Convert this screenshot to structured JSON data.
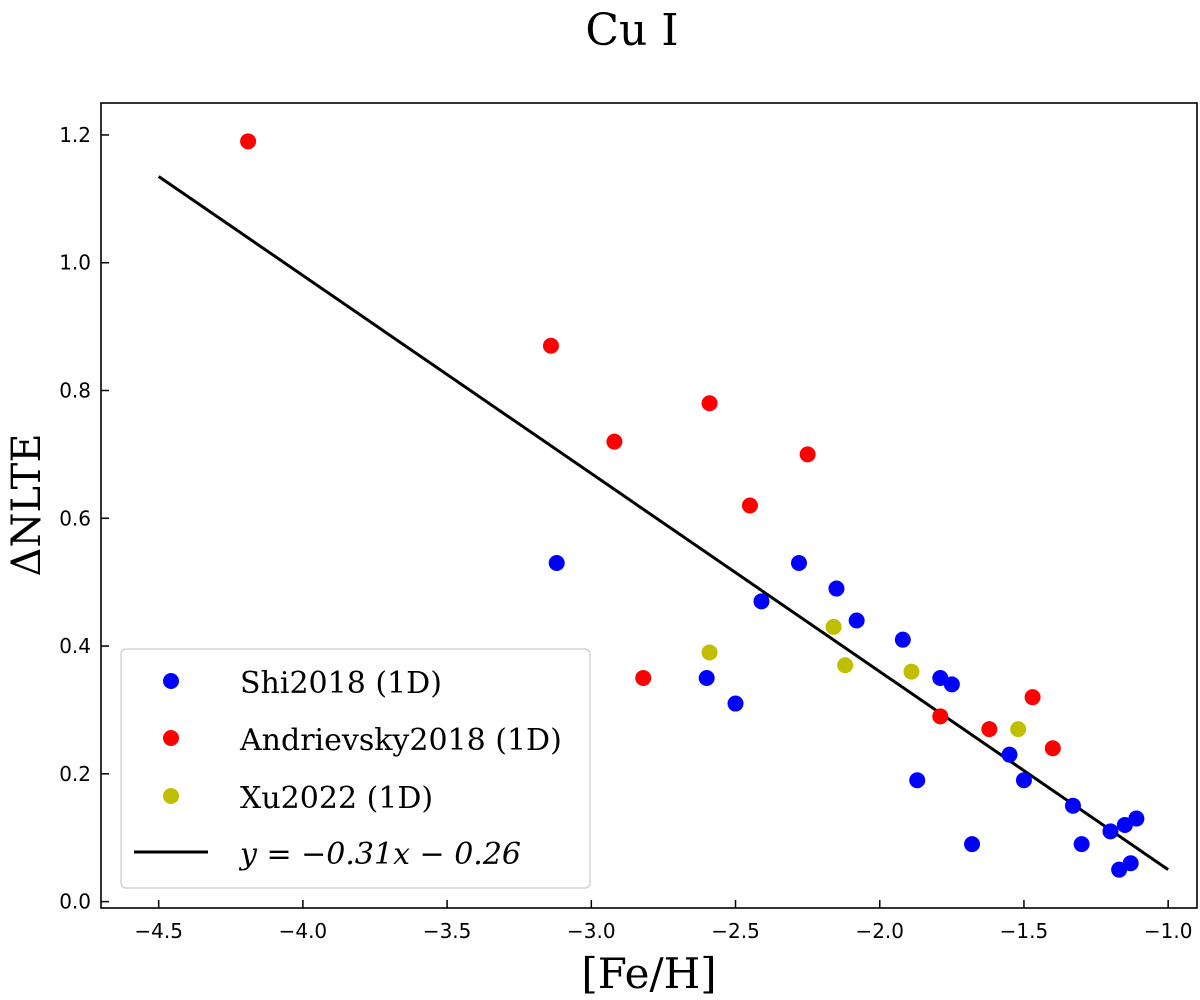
{
  "chart_data": {
    "type": "scatter",
    "title": "Cu I",
    "xlabel": "[Fe/H]",
    "ylabel": "ΔNLTE",
    "xlim": [
      -4.7,
      -0.9
    ],
    "ylim": [
      -0.01,
      1.25
    ],
    "xticks": [
      -4.5,
      -4.0,
      -3.5,
      -3.0,
      -2.5,
      -2.0,
      -1.5,
      -1.0
    ],
    "xtick_labels": [
      "−4.5",
      "−4.0",
      "−3.5",
      "−3.0",
      "−2.5",
      "−2.0",
      "−1.5",
      "−1.0"
    ],
    "yticks": [
      0.0,
      0.2,
      0.4,
      0.6,
      0.8,
      1.0,
      1.2
    ],
    "ytick_labels": [
      "0.0",
      "0.2",
      "0.4",
      "0.6",
      "0.8",
      "1.0",
      "1.2"
    ],
    "grid": false,
    "legend_position": "lower-left",
    "series": [
      {
        "name": "Shi2018 (1D)",
        "color": "#0000ff",
        "points": [
          [
            -3.12,
            0.53
          ],
          [
            -2.6,
            0.35
          ],
          [
            -2.5,
            0.31
          ],
          [
            -2.41,
            0.47
          ],
          [
            -2.28,
            0.53
          ],
          [
            -2.15,
            0.49
          ],
          [
            -2.08,
            0.44
          ],
          [
            -1.92,
            0.41
          ],
          [
            -1.87,
            0.19
          ],
          [
            -1.79,
            0.35
          ],
          [
            -1.75,
            0.34
          ],
          [
            -1.68,
            0.09
          ],
          [
            -1.55,
            0.23
          ],
          [
            -1.5,
            0.19
          ],
          [
            -1.33,
            0.15
          ],
          [
            -1.3,
            0.09
          ],
          [
            -1.2,
            0.11
          ],
          [
            -1.17,
            0.05
          ],
          [
            -1.15,
            0.12
          ],
          [
            -1.13,
            0.06
          ],
          [
            -1.11,
            0.13
          ]
        ]
      },
      {
        "name": "Andrievsky2018 (1D)",
        "color": "#ff0000",
        "points": [
          [
            -4.19,
            1.19
          ],
          [
            -3.14,
            0.87
          ],
          [
            -2.92,
            0.72
          ],
          [
            -2.82,
            0.35
          ],
          [
            -2.59,
            0.78
          ],
          [
            -2.45,
            0.62
          ],
          [
            -2.25,
            0.7
          ],
          [
            -1.79,
            0.29
          ],
          [
            -1.62,
            0.27
          ],
          [
            -1.47,
            0.32
          ],
          [
            -1.4,
            0.24
          ]
        ]
      },
      {
        "name": "Xu2022 (1D)",
        "color": "#bfbf00",
        "points": [
          [
            -2.59,
            0.39
          ],
          [
            -2.16,
            0.43
          ],
          [
            -2.12,
            0.37
          ],
          [
            -1.89,
            0.36
          ],
          [
            -1.52,
            0.27
          ]
        ]
      }
    ],
    "fit_line": {
      "label": "y = −0.31x − 0.26",
      "slope": -0.31,
      "intercept": -0.26,
      "x_range": [
        -4.5,
        -1.0
      ],
      "color": "#000000"
    }
  }
}
